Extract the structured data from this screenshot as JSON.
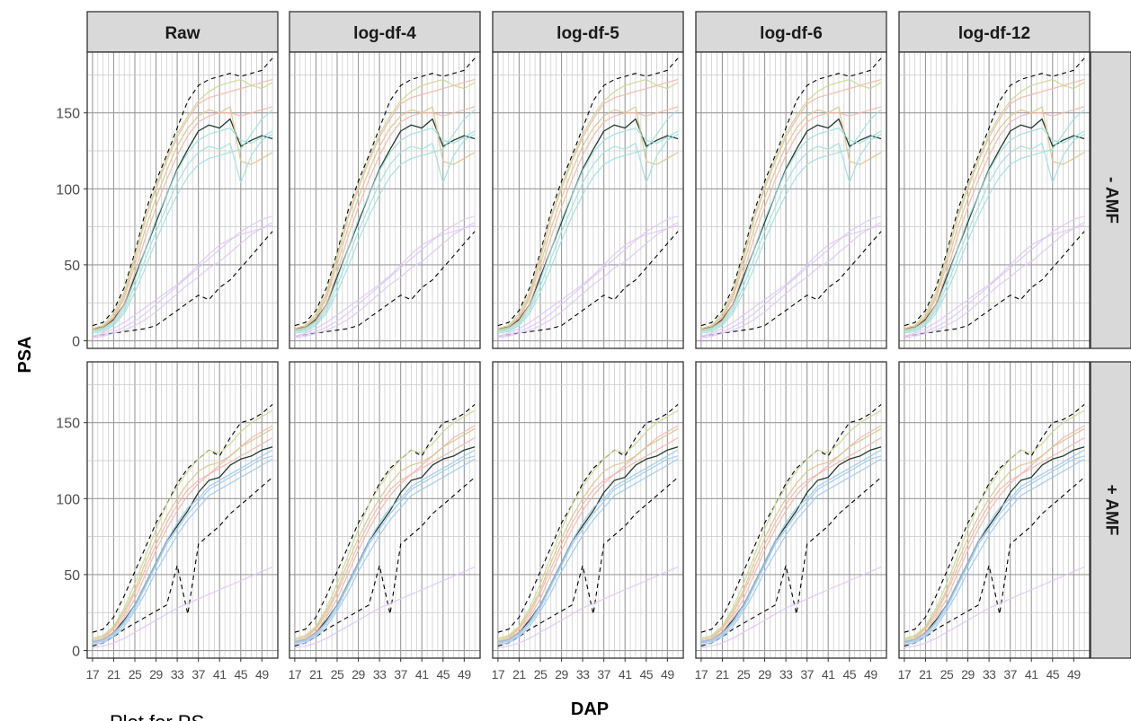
{
  "chart_data": {
    "type": "line",
    "x_axis_label": "DAP",
    "y_axis_label": "PSA",
    "column_strips": [
      "Raw",
      "log-df-4",
      "log-df-5",
      "log-df-6",
      "log-df-12"
    ],
    "row_strips": [
      "- AMF",
      "+ AMF"
    ],
    "x_ticks": [
      17,
      21,
      25,
      29,
      33,
      37,
      41,
      45,
      49
    ],
    "x_range": [
      16,
      52
    ],
    "y_ticks": [
      0,
      50,
      100,
      150
    ],
    "y_range": [
      -5,
      190
    ],
    "grid": true,
    "legend": "none",
    "x": [
      17,
      19,
      21,
      23,
      25,
      27,
      29,
      31,
      33,
      35,
      37,
      39,
      41,
      43,
      45,
      47,
      49,
      51
    ],
    "panels": [
      {
        "row": "- AMF",
        "series": [
          {
            "color": "#1f3b2f",
            "dash": "solid",
            "values": [
              8,
              9,
              14,
              24,
              42,
              60,
              78,
              96,
              113,
              126,
              138,
              142,
              140,
              146,
              128,
              132,
              135,
              133
            ]
          },
          {
            "color": "#000000",
            "dash": "dashed",
            "values": [
              10,
              12,
              20,
              35,
              58,
              85,
              105,
              122,
              140,
              158,
              168,
              172,
              174,
              176,
              174,
              176,
              178,
              186
            ]
          },
          {
            "color": "#000000",
            "dash": "dashed",
            "values": [
              3,
              4,
              5,
              6,
              7,
              8,
              10,
              15,
              20,
              25,
              30,
              27,
              35,
              40,
              48,
              56,
              64,
              72
            ]
          },
          {
            "color": "#f2b6a8",
            "dash": "solid",
            "values": [
              7,
              8,
              13,
              24,
              45,
              68,
              88,
              106,
              122,
              135,
              144,
              148,
              150,
              150,
              148,
              150,
              152,
              154
            ]
          },
          {
            "color": "#f2b6a8",
            "dash": "solid",
            "values": [
              8,
              10,
              16,
              30,
              54,
              80,
              100,
              118,
              134,
              146,
              156,
              160,
              162,
              164,
              166,
              168,
              170,
              172
            ]
          },
          {
            "color": "#d8c48a",
            "dash": "solid",
            "values": [
              7,
              9,
              15,
              28,
              50,
              74,
              94,
              112,
              128,
              140,
              148,
              152,
              150,
              154,
              118,
              116,
              120,
              124
            ]
          },
          {
            "color": "#c8d890",
            "dash": "solid",
            "values": [
              8,
              10,
              18,
              32,
              56,
              82,
              102,
              120,
              136,
              148,
              158,
              164,
              168,
              170,
              172,
              168,
              166,
              170
            ]
          },
          {
            "color": "#9fdfdc",
            "dash": "solid",
            "values": [
              6,
              7,
              11,
              20,
              36,
              54,
              72,
              88,
              104,
              116,
              124,
              128,
              126,
              130,
              104,
              122,
              132,
              136
            ]
          },
          {
            "color": "#9fdfdc",
            "dash": "solid",
            "values": [
              5,
              6,
              10,
              18,
              32,
              48,
              66,
              82,
              96,
              108,
              116,
              120,
              122,
              124,
              126,
              136,
              146,
              152
            ]
          },
          {
            "color": "#9fdfdc",
            "dash": "solid",
            "values": [
              6,
              8,
              12,
              22,
              40,
              60,
              80,
              96,
              112,
              124,
              132,
              136,
              138,
              140,
              132,
              130,
              134,
              138
            ]
          },
          {
            "color": "#dcc8f4",
            "dash": "solid",
            "values": [
              3,
              4,
              6,
              9,
              13,
              18,
              24,
              30,
              36,
              42,
              48,
              54,
              60,
              66,
              72,
              76,
              80,
              82
            ]
          },
          {
            "color": "#dcc8f4",
            "dash": "solid",
            "values": [
              3,
              5,
              8,
              12,
              17,
              22,
              27,
              32,
              37,
              43,
              50,
              57,
              63,
              67,
              70,
              72,
              74,
              76
            ]
          },
          {
            "color": "#dcc8f4",
            "dash": "solid",
            "values": [
              2,
              3,
              5,
              7,
              10,
              14,
              19,
              25,
              31,
              37,
              42,
              48,
              52,
              58,
              64,
              70,
              74,
              78
            ]
          }
        ]
      },
      {
        "row": "+ AMF",
        "series": [
          {
            "color": "#1f3b2f",
            "dash": "solid",
            "values": [
              6,
              7,
              12,
              20,
              30,
              44,
              58,
              72,
              82,
              92,
              104,
              112,
              114,
              122,
              126,
              128,
              132,
              134
            ]
          },
          {
            "color": "#000000",
            "dash": "dashed",
            "values": [
              12,
              14,
              22,
              36,
              52,
              68,
              84,
              96,
              110,
              120,
              126,
              132,
              128,
              140,
              150,
              152,
              156,
              162
            ]
          },
          {
            "color": "#000000",
            "dash": "dashed",
            "values": [
              3,
              5,
              9,
              14,
              18,
              22,
              26,
              30,
              56,
              24,
              70,
              76,
              82,
              90,
              96,
              102,
              108,
              114
            ]
          },
          {
            "color": "#f2b6a8",
            "dash": "solid",
            "values": [
              6,
              8,
              14,
              24,
              38,
              54,
              70,
              84,
              96,
              106,
              112,
              116,
              120,
              124,
              128,
              132,
              136,
              140
            ]
          },
          {
            "color": "#f2b6a8",
            "dash": "solid",
            "values": [
              5,
              7,
              12,
              22,
              34,
              50,
              66,
              80,
              92,
              102,
              110,
              116,
              122,
              128,
              134,
              140,
              144,
              148
            ]
          },
          {
            "color": "#c8d890",
            "dash": "solid",
            "values": [
              8,
              10,
              16,
              28,
              44,
              62,
              80,
              96,
              108,
              118,
              126,
              132,
              130,
              136,
              144,
              150,
              154,
              158
            ]
          },
          {
            "color": "#d8c48a",
            "dash": "solid",
            "values": [
              7,
              9,
              15,
              26,
              40,
              58,
              74,
              88,
              100,
              110,
              118,
              122,
              124,
              128,
              134,
              138,
              142,
              146
            ]
          },
          {
            "color": "#9cc8ee",
            "dash": "solid",
            "values": [
              5,
              6,
              10,
              18,
              28,
              42,
              56,
              70,
              80,
              90,
              98,
              106,
              110,
              114,
              118,
              122,
              126,
              128
            ]
          },
          {
            "color": "#9cc8ee",
            "dash": "solid",
            "values": [
              4,
              5,
              9,
              16,
              26,
              38,
              52,
              64,
              76,
              86,
              94,
              102,
              106,
              110,
              114,
              118,
              122,
              126
            ]
          },
          {
            "color": "#9cc8ee",
            "dash": "solid",
            "values": [
              6,
              7,
              11,
              19,
              30,
              44,
              58,
              72,
              84,
              94,
              100,
              108,
              112,
              116,
              120,
              124,
              128,
              132
            ]
          },
          {
            "color": "#dcc8f4",
            "dash": "solid",
            "values": [
              2,
              3,
              5,
              8,
              12,
              16,
              20,
              24,
              28,
              31,
              34,
              37,
              40,
              43,
              46,
              49,
              52,
              55
            ]
          }
        ]
      }
    ]
  },
  "caption": {
    "text": "Plot for PS"
  }
}
